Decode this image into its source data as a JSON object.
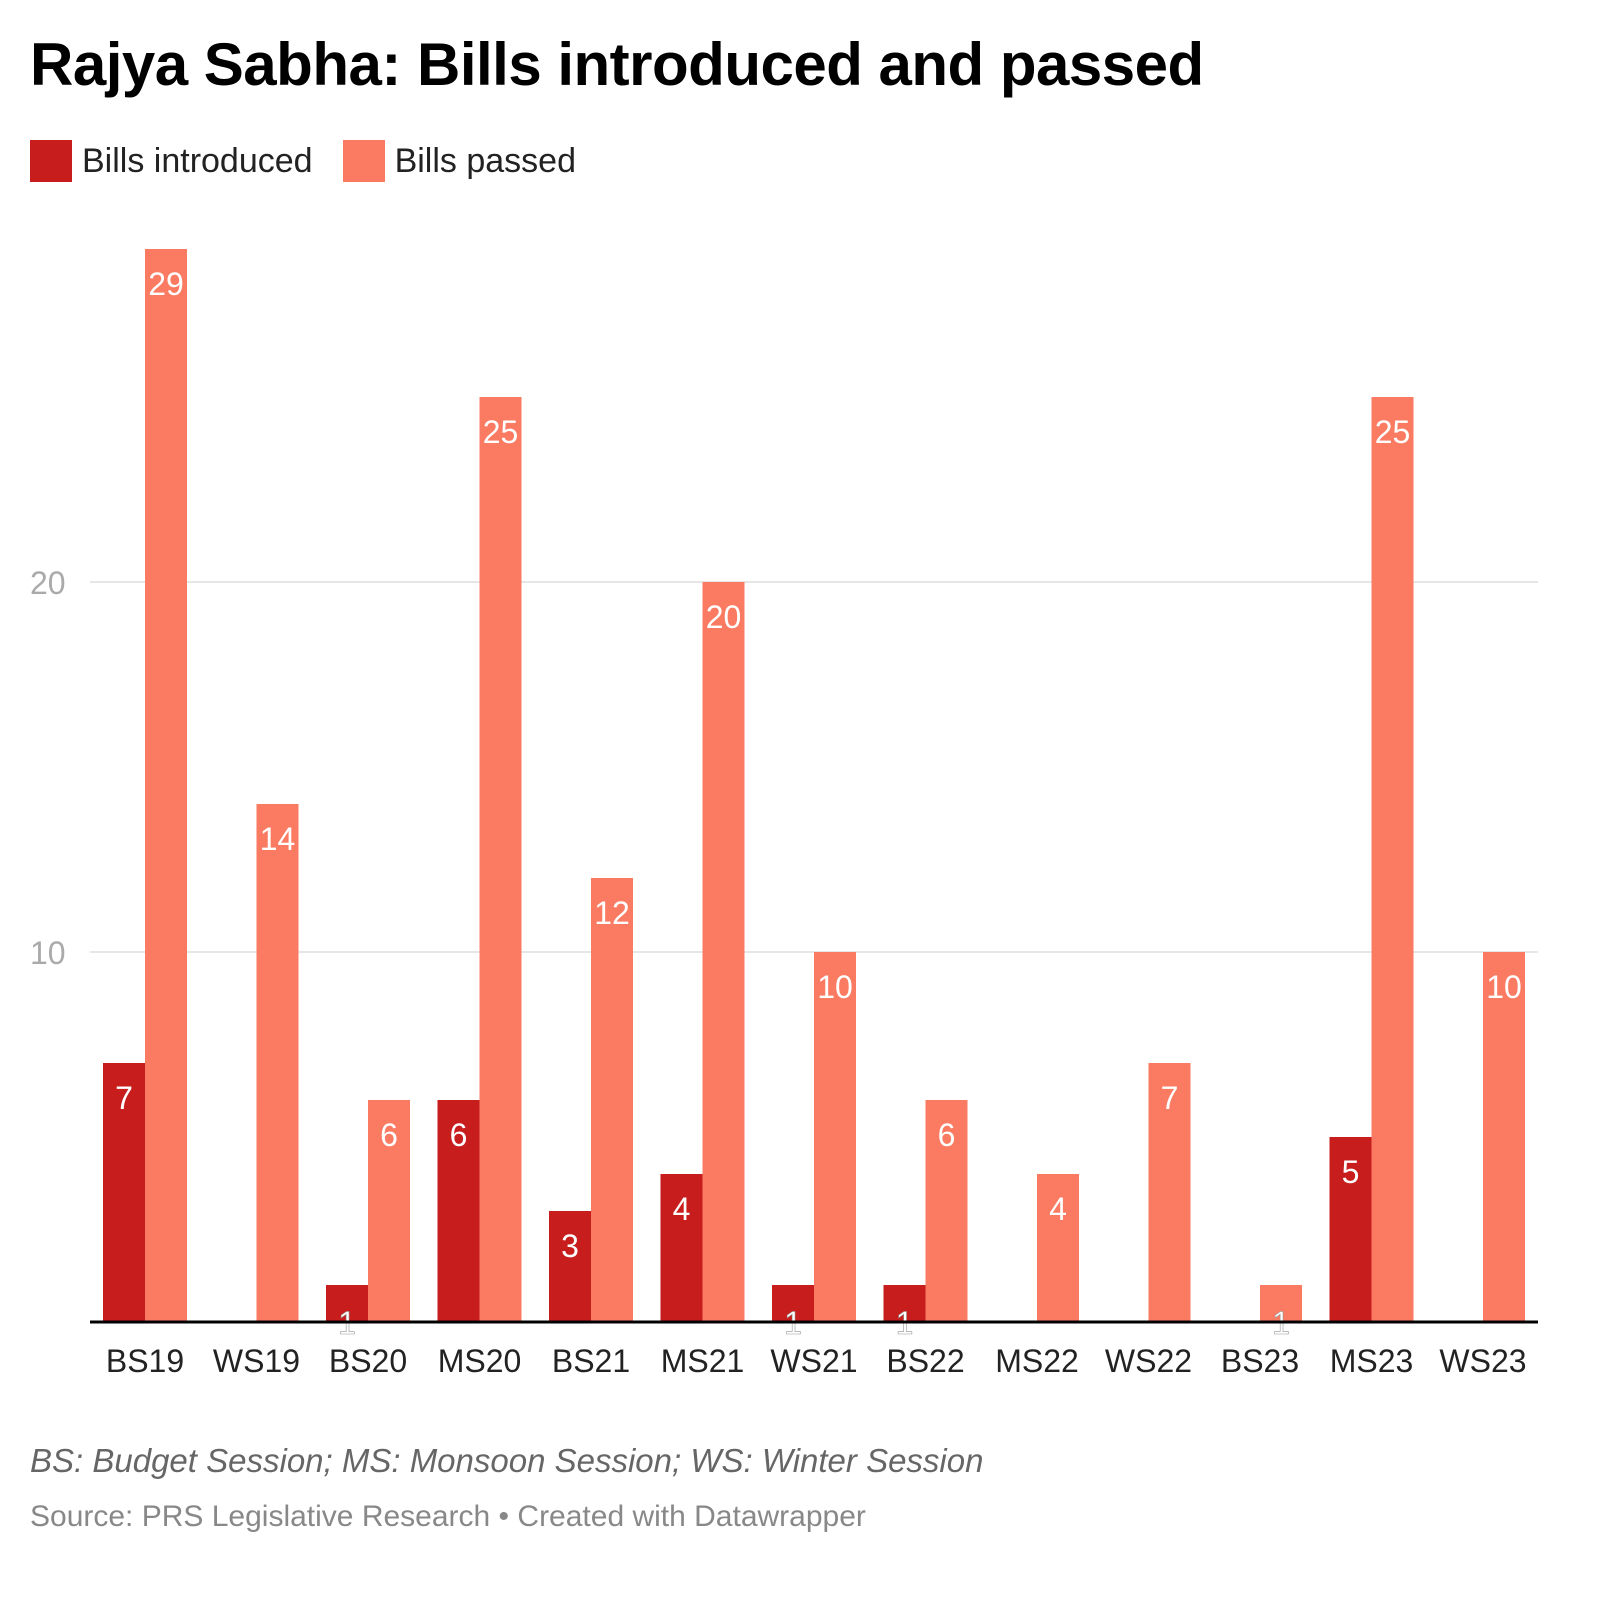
{
  "colors": {
    "introduced": "#c71e1d",
    "passed": "#fa7b62",
    "grid": "#e6e6e6",
    "axis": "#000000",
    "tick": "#aaaaaa"
  },
  "chart_data": {
    "type": "bar",
    "title": "Rajya Sabha: Bills introduced and passed",
    "xlabel": "",
    "ylabel": "",
    "ylim": [
      0,
      30
    ],
    "yticks": [
      10,
      20
    ],
    "grid": true,
    "legend_position": "top-left",
    "categories": [
      "BS19",
      "WS19",
      "BS20",
      "MS20",
      "BS21",
      "MS21",
      "WS21",
      "BS22",
      "MS22",
      "WS22",
      "BS23",
      "MS23",
      "WS23"
    ],
    "series": [
      {
        "name": "Bills introduced",
        "values": [
          7,
          0,
          1,
          6,
          3,
          4,
          1,
          1,
          0,
          0,
          0,
          5,
          0
        ]
      },
      {
        "name": "Bills passed",
        "values": [
          29,
          14,
          6,
          25,
          12,
          20,
          10,
          6,
          4,
          7,
          1,
          25,
          10
        ]
      }
    ]
  },
  "legend": {
    "items": [
      "Bills introduced",
      "Bills passed"
    ]
  },
  "footer": {
    "note": "BS: Budget Session; MS: Monsoon Session; WS: Winter Session",
    "source": "Source: PRS Legislative Research • Created with Datawrapper"
  }
}
